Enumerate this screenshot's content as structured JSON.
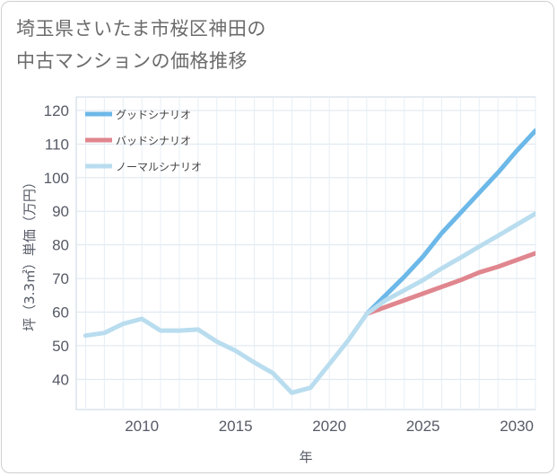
{
  "title": {
    "line1": "埼玉県さいたま市桜区神田の",
    "line2": "中古マンションの価格推移"
  },
  "chart_data": {
    "type": "line",
    "title": "埼玉県さいたま市桜区神田の中古マンションの価格推移",
    "xlabel": "年",
    "ylabel": "坪（3.3㎡）単価（万円）",
    "xlim": [
      2006.5,
      2031
    ],
    "ylim": [
      31,
      124
    ],
    "x_ticks": [
      2010,
      2015,
      2020,
      2025,
      2030
    ],
    "y_ticks": [
      40,
      50,
      60,
      70,
      80,
      90,
      100,
      110,
      120
    ],
    "grid": true,
    "legend_position": "top-left",
    "series": [
      {
        "name": "グッドシナリオ",
        "color": "#6cb8e8",
        "points": [
          [
            2022,
            59.5
          ],
          [
            2023,
            65.0
          ],
          [
            2024,
            70.5
          ],
          [
            2025,
            76.5
          ],
          [
            2026,
            83.5
          ],
          [
            2027,
            89.5
          ],
          [
            2028,
            95.5
          ],
          [
            2029,
            101.5
          ],
          [
            2030,
            108.0
          ],
          [
            2031,
            114.0
          ]
        ]
      },
      {
        "name": "バッドシナリオ",
        "color": "#e0868e",
        "points": [
          [
            2022,
            59.5
          ],
          [
            2023,
            61.5
          ],
          [
            2024,
            63.5
          ],
          [
            2025,
            65.5
          ],
          [
            2026,
            67.5
          ],
          [
            2027,
            69.5
          ],
          [
            2028,
            71.8
          ],
          [
            2029,
            73.5
          ],
          [
            2030,
            75.5
          ],
          [
            2031,
            77.5
          ]
        ]
      },
      {
        "name": "ノーマルシナリオ",
        "color": "#b9ddef",
        "points": [
          [
            2007,
            53.0
          ],
          [
            2008,
            53.8
          ],
          [
            2009,
            56.5
          ],
          [
            2010,
            58.0
          ],
          [
            2011,
            54.5
          ],
          [
            2012,
            54.5
          ],
          [
            2013,
            54.8
          ],
          [
            2014,
            51.2
          ],
          [
            2015,
            48.5
          ],
          [
            2016,
            45.0
          ],
          [
            2017,
            41.8
          ],
          [
            2018,
            36.0
          ],
          [
            2019,
            37.5
          ],
          [
            2020,
            44.5
          ],
          [
            2021,
            51.5
          ],
          [
            2022,
            59.5
          ],
          [
            2023,
            63.5
          ],
          [
            2024,
            66.5
          ],
          [
            2025,
            69.5
          ],
          [
            2026,
            73.0
          ],
          [
            2027,
            76.2
          ],
          [
            2028,
            79.5
          ],
          [
            2029,
            82.7
          ],
          [
            2030,
            86.0
          ],
          [
            2031,
            89.3
          ]
        ]
      }
    ]
  }
}
